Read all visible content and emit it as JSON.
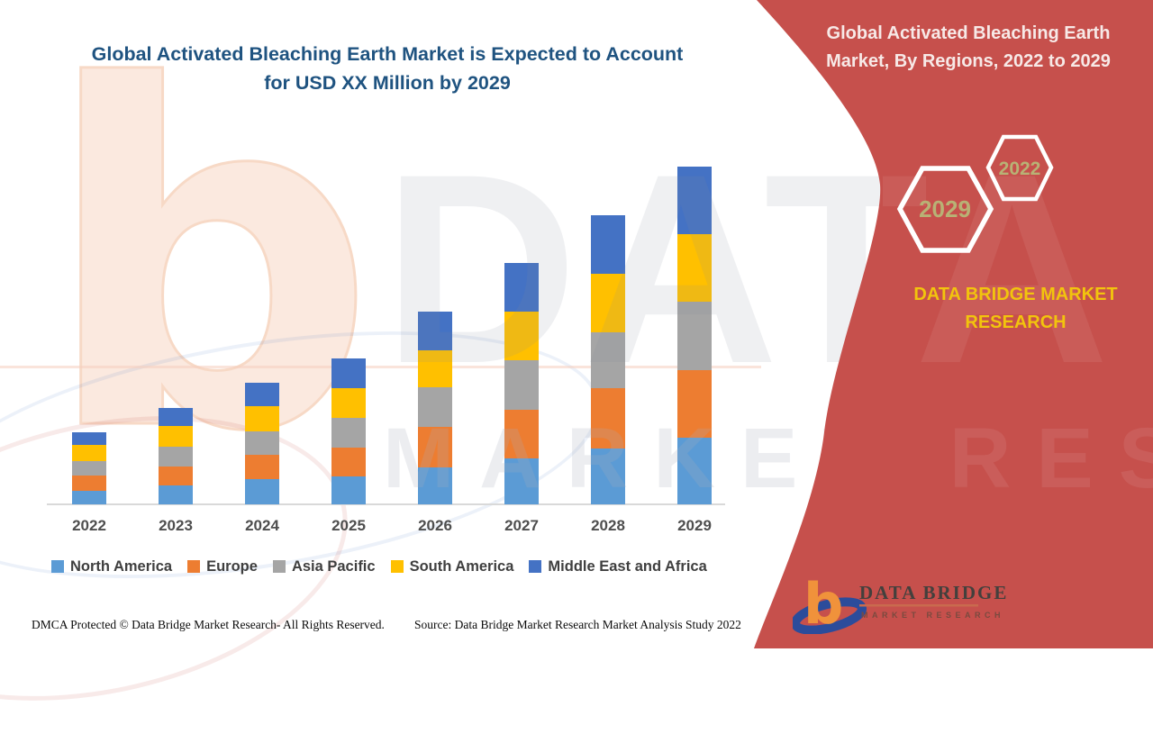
{
  "main_title": {
    "line1": "Global Activated Bleaching Earth Market is Expected to Account",
    "line2": "for USD XX Million by 2029"
  },
  "chart_data": {
    "type": "bar",
    "subtype": "stacked-column",
    "title": "Global Activated Bleaching Earth Market is Expected to Account for USD XX Million by 2029",
    "categories": [
      "2022",
      "2023",
      "2024",
      "2025",
      "2026",
      "2027",
      "2028",
      "2029"
    ],
    "series": [
      {
        "name": "North America",
        "color": "#5B9BD5",
        "values": [
          15,
          21,
          28,
          31,
          41,
          51,
          62,
          74
        ]
      },
      {
        "name": "Europe",
        "color": "#ED7D31",
        "values": [
          17,
          21,
          27,
          32,
          45,
          54,
          67,
          75
        ]
      },
      {
        "name": "Asia Pacific",
        "color": "#A5A5A5",
        "values": [
          16,
          22,
          26,
          33,
          44,
          55,
          62,
          76
        ]
      },
      {
        "name": "South America",
        "color": "#FFC000",
        "values": [
          18,
          23,
          28,
          33,
          41,
          54,
          65,
          75
        ]
      },
      {
        "name": "Middle East and Africa",
        "color": "#4472C4",
        "values": [
          14,
          20,
          26,
          33,
          43,
          54,
          65,
          75
        ]
      }
    ],
    "stack_totals": [
      80,
      107,
      135,
      162,
      214,
      268,
      321,
      375
    ],
    "xlabel": "",
    "ylabel": "",
    "value_note": "No value axis shown; series values are relative units estimated from bar heights (figure reports USD XX Million placeholder)",
    "legend_position": "bottom",
    "gridlines": false
  },
  "panel": {
    "title_line1": "Global Activated Bleaching Earth",
    "title_line2": "Market,  By Regions, 2022 to 2029",
    "hexagon_front_year": "2029",
    "hexagon_back_year": "2022",
    "brand_line1": "DATA BRIDGE MARKET",
    "brand_line2": "RESEARCH",
    "background_color": "#C6504C",
    "brand_text_color": "#F2C40D",
    "hexagon_year_color": "#B8B275"
  },
  "logo": {
    "name": "DATA BRIDGE",
    "subtitle": "MARKET RESEARCH"
  },
  "watermark": {
    "letter": "b",
    "row1": "DATA BRIDGE",
    "row2": "MARKET RESEARCH"
  },
  "footer": {
    "left": "DMCA Protected © Data Bridge Market Research- All Rights Reserved.",
    "right": "Source: Data Bridge Market Research Market Analysis Study 2022"
  }
}
